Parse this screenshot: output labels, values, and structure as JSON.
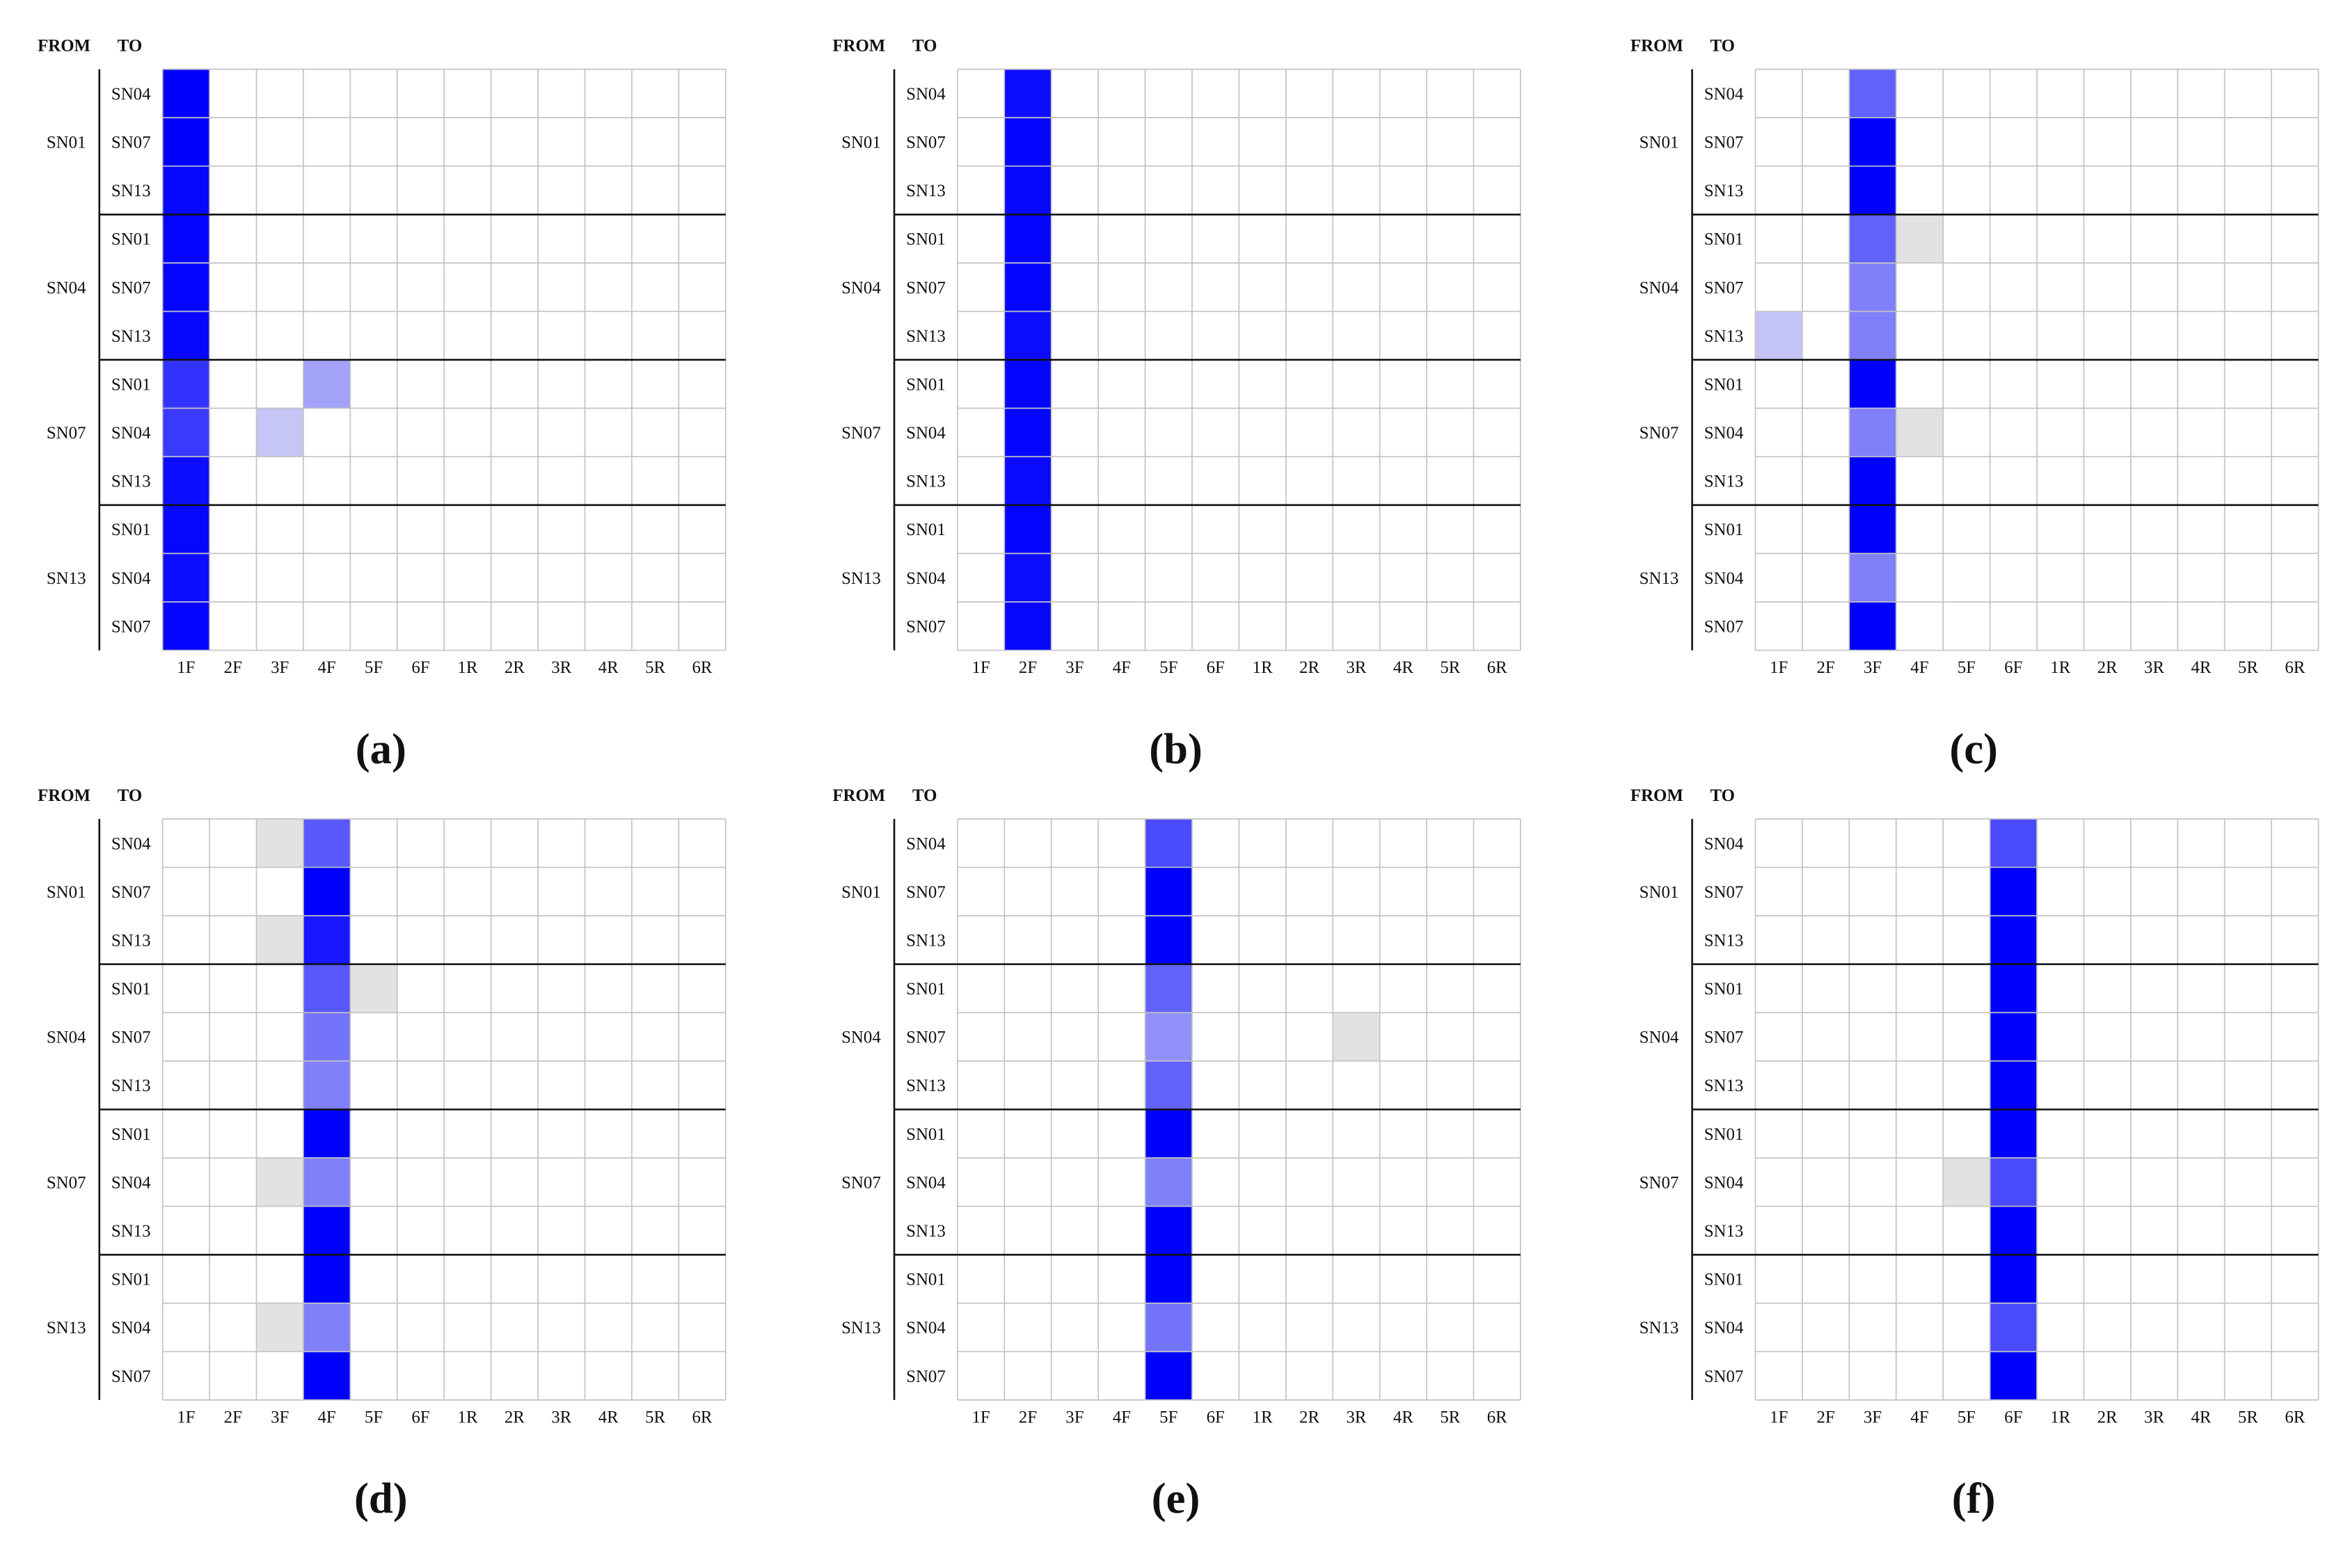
{
  "chart_data": [
    {
      "type": "heatmap",
      "panel_label": "(a)",
      "from_header": "FROM",
      "to_header": "TO",
      "from_groups": [
        "SN01",
        "SN04",
        "SN07",
        "SN13"
      ],
      "rows": [
        "SN04",
        "SN07",
        "SN13",
        "SN01",
        "SN07",
        "SN13",
        "SN01",
        "SN04",
        "SN13",
        "SN01",
        "SN04",
        "SN07"
      ],
      "columns": [
        "1F",
        "2F",
        "3F",
        "4F",
        "5F",
        "6F",
        "1R",
        "2R",
        "3R",
        "4R",
        "5R",
        "6R"
      ],
      "values": [
        [
          1.0,
          0,
          0,
          0,
          0,
          0,
          0,
          0,
          0,
          0,
          0,
          0
        ],
        [
          1.0,
          0,
          0,
          0,
          0,
          0,
          0,
          0,
          0,
          0,
          0,
          0
        ],
        [
          0.97,
          0,
          0,
          0,
          0,
          0,
          0,
          0,
          0,
          0,
          0,
          0
        ],
        [
          0.98,
          0,
          0,
          0,
          0,
          0,
          0,
          0,
          0,
          0,
          0,
          0
        ],
        [
          0.98,
          0,
          0,
          0,
          0,
          0,
          0,
          0,
          0,
          0,
          0,
          0
        ],
        [
          0.97,
          0,
          0,
          0,
          0,
          0,
          0,
          0,
          0,
          0,
          0,
          0
        ],
        [
          0.78,
          0,
          0,
          0.3,
          0,
          0,
          0,
          0,
          0,
          0,
          0,
          0
        ],
        [
          0.75,
          0,
          0.15,
          0,
          0,
          0,
          0,
          0,
          0,
          0,
          0,
          0
        ],
        [
          0.95,
          0,
          0,
          0,
          0,
          0,
          0,
          0,
          0,
          0,
          0,
          0
        ],
        [
          0.97,
          0,
          0,
          0,
          0,
          0,
          0,
          0,
          0,
          0,
          0,
          0
        ],
        [
          0.95,
          0,
          0,
          0,
          0,
          0,
          0,
          0,
          0,
          0,
          0,
          0
        ],
        [
          0.98,
          0,
          0,
          0,
          0,
          0,
          0,
          0,
          0,
          0,
          0,
          0
        ]
      ]
    },
    {
      "type": "heatmap",
      "panel_label": "(b)",
      "from_header": "FROM",
      "to_header": "TO",
      "from_groups": [
        "SN01",
        "SN04",
        "SN07",
        "SN13"
      ],
      "rows": [
        "SN04",
        "SN07",
        "SN13",
        "SN01",
        "SN07",
        "SN13",
        "SN01",
        "SN04",
        "SN13",
        "SN01",
        "SN04",
        "SN07"
      ],
      "columns": [
        "1F",
        "2F",
        "3F",
        "4F",
        "5F",
        "6F",
        "1R",
        "2R",
        "3R",
        "4R",
        "5R",
        "6R"
      ],
      "values": [
        [
          0,
          0.95,
          0,
          0,
          0,
          0,
          0,
          0,
          0,
          0,
          0,
          0
        ],
        [
          0,
          0.98,
          0,
          0,
          0,
          0,
          0,
          0,
          0,
          0,
          0,
          0
        ],
        [
          0,
          0.97,
          0,
          0,
          0,
          0,
          0,
          0,
          0,
          0,
          0,
          0
        ],
        [
          0,
          0.98,
          0,
          0,
          0,
          0,
          0,
          0,
          0,
          0,
          0,
          0
        ],
        [
          0,
          0.98,
          0,
          0,
          0,
          0,
          0,
          0,
          0,
          0,
          0,
          0
        ],
        [
          0,
          0.95,
          0,
          0,
          0,
          0,
          0,
          0,
          0,
          0,
          0,
          0
        ],
        [
          0,
          0.98,
          0,
          0,
          0,
          0,
          0,
          0,
          0,
          0,
          0,
          0
        ],
        [
          0,
          0.98,
          0,
          0,
          0,
          0,
          0,
          0,
          0,
          0,
          0,
          0
        ],
        [
          0,
          0.96,
          0,
          0,
          0,
          0,
          0,
          0,
          0,
          0,
          0,
          0
        ],
        [
          0,
          0.98,
          0,
          0,
          0,
          0,
          0,
          0,
          0,
          0,
          0,
          0
        ],
        [
          0,
          0.95,
          0,
          0,
          0,
          0,
          0,
          0,
          0,
          0,
          0,
          0
        ],
        [
          0,
          0.97,
          0,
          0,
          0,
          0,
          0,
          0,
          0,
          0,
          0,
          0
        ]
      ]
    },
    {
      "type": "heatmap",
      "panel_label": "(c)",
      "from_header": "FROM",
      "to_header": "TO",
      "from_groups": [
        "SN01",
        "SN04",
        "SN07",
        "SN13"
      ],
      "rows": [
        "SN04",
        "SN07",
        "SN13",
        "SN01",
        "SN07",
        "SN13",
        "SN01",
        "SN04",
        "SN13",
        "SN01",
        "SN04",
        "SN07"
      ],
      "columns": [
        "1F",
        "2F",
        "3F",
        "4F",
        "5F",
        "6F",
        "1R",
        "2R",
        "3R",
        "4R",
        "5R",
        "6R"
      ],
      "values": [
        [
          0,
          0,
          0.58,
          0,
          0,
          0,
          0,
          0,
          0,
          0,
          0,
          0
        ],
        [
          0,
          0,
          1.0,
          0,
          0,
          0,
          0,
          0,
          0,
          0,
          0,
          0
        ],
        [
          0,
          0,
          1.0,
          0,
          0,
          0,
          0,
          0,
          0,
          0,
          0,
          0
        ],
        [
          0,
          0,
          0.58,
          0.1,
          0,
          0,
          0,
          0,
          0,
          0,
          0,
          0
        ],
        [
          0,
          0,
          0.45,
          0,
          0,
          0,
          0,
          0,
          0,
          0,
          0,
          0
        ],
        [
          0.16,
          0,
          0.45,
          0,
          0,
          0,
          0,
          0,
          0,
          0,
          0,
          0
        ],
        [
          0,
          0,
          1.0,
          0,
          0,
          0,
          0,
          0,
          0,
          0,
          0,
          0
        ],
        [
          0,
          0,
          0.45,
          0.1,
          0,
          0,
          0,
          0,
          0,
          0,
          0,
          0
        ],
        [
          0,
          0,
          1.0,
          0,
          0,
          0,
          0,
          0,
          0,
          0,
          0,
          0
        ],
        [
          0,
          0,
          1.0,
          0,
          0,
          0,
          0,
          0,
          0,
          0,
          0,
          0
        ],
        [
          0,
          0,
          0.45,
          0,
          0,
          0,
          0,
          0,
          0,
          0,
          0,
          0
        ],
        [
          0,
          0,
          1.0,
          0,
          0,
          0,
          0,
          0,
          0,
          0,
          0,
          0
        ]
      ]
    },
    {
      "type": "heatmap",
      "panel_label": "(d)",
      "from_header": "FROM",
      "to_header": "TO",
      "from_groups": [
        "SN01",
        "SN04",
        "SN07",
        "SN13"
      ],
      "rows": [
        "SN04",
        "SN07",
        "SN13",
        "SN01",
        "SN07",
        "SN13",
        "SN01",
        "SN04",
        "SN13",
        "SN01",
        "SN04",
        "SN07"
      ],
      "columns": [
        "1F",
        "2F",
        "3F",
        "4F",
        "5F",
        "6F",
        "1R",
        "2R",
        "3R",
        "4R",
        "5R",
        "6R"
      ],
      "values": [
        [
          0,
          0,
          0.1,
          0.62,
          0,
          0,
          0,
          0,
          0,
          0,
          0,
          0
        ],
        [
          0,
          0,
          0,
          1.0,
          0,
          0,
          0,
          0,
          0,
          0,
          0,
          0
        ],
        [
          0,
          0,
          0.1,
          0.9,
          0,
          0,
          0,
          0,
          0,
          0,
          0,
          0
        ],
        [
          0,
          0,
          0,
          0.62,
          0.1,
          0,
          0,
          0,
          0,
          0,
          0,
          0
        ],
        [
          0,
          0,
          0,
          0.5,
          0,
          0,
          0,
          0,
          0,
          0,
          0,
          0
        ],
        [
          0,
          0,
          0,
          0.45,
          0,
          0,
          0,
          0,
          0,
          0,
          0,
          0
        ],
        [
          0,
          0,
          0,
          1.0,
          0,
          0,
          0,
          0,
          0,
          0,
          0,
          0
        ],
        [
          0,
          0,
          0.1,
          0.45,
          0,
          0,
          0,
          0,
          0,
          0,
          0,
          0
        ],
        [
          0,
          0,
          0,
          1.0,
          0,
          0,
          0,
          0,
          0,
          0,
          0,
          0
        ],
        [
          0,
          0,
          0,
          1.0,
          0,
          0,
          0,
          0,
          0,
          0,
          0,
          0
        ],
        [
          0,
          0,
          0.1,
          0.45,
          0,
          0,
          0,
          0,
          0,
          0,
          0,
          0
        ],
        [
          0,
          0,
          0,
          1.0,
          0,
          0,
          0,
          0,
          0,
          0,
          0,
          0
        ]
      ]
    },
    {
      "type": "heatmap",
      "panel_label": "(e)",
      "from_header": "FROM",
      "to_header": "TO",
      "from_groups": [
        "SN01",
        "SN04",
        "SN07",
        "SN13"
      ],
      "rows": [
        "SN04",
        "SN07",
        "SN13",
        "SN01",
        "SN07",
        "SN13",
        "SN01",
        "SN04",
        "SN13",
        "SN01",
        "SN04",
        "SN07"
      ],
      "columns": [
        "1F",
        "2F",
        "3F",
        "4F",
        "5F",
        "6F",
        "1R",
        "2R",
        "3R",
        "4R",
        "5R",
        "6R"
      ],
      "values": [
        [
          0,
          0,
          0,
          0,
          0.68,
          0,
          0,
          0,
          0,
          0,
          0,
          0
        ],
        [
          0,
          0,
          0,
          0,
          1.0,
          0,
          0,
          0,
          0,
          0,
          0,
          0
        ],
        [
          0,
          0,
          0,
          0,
          1.0,
          0,
          0,
          0,
          0,
          0,
          0,
          0
        ],
        [
          0,
          0,
          0,
          0,
          0.58,
          0,
          0,
          0,
          0,
          0,
          0,
          0
        ],
        [
          0,
          0,
          0,
          0,
          0.38,
          0,
          0,
          0,
          0.1,
          0,
          0,
          0
        ],
        [
          0,
          0,
          0,
          0,
          0.58,
          0,
          0,
          0,
          0,
          0,
          0,
          0
        ],
        [
          0,
          0,
          0,
          0,
          1.0,
          0,
          0,
          0,
          0,
          0,
          0,
          0
        ],
        [
          0,
          0,
          0,
          0,
          0.45,
          0,
          0,
          0,
          0,
          0,
          0,
          0
        ],
        [
          0,
          0,
          0,
          0,
          1.0,
          0,
          0,
          0,
          0,
          0,
          0,
          0
        ],
        [
          0,
          0,
          0,
          0,
          1.0,
          0,
          0,
          0,
          0,
          0,
          0,
          0
        ],
        [
          0,
          0,
          0,
          0,
          0.5,
          0,
          0,
          0,
          0,
          0,
          0,
          0
        ],
        [
          0,
          0,
          0,
          0,
          1.0,
          0,
          0,
          0,
          0,
          0,
          0,
          0
        ]
      ]
    },
    {
      "type": "heatmap",
      "panel_label": "(f)",
      "from_header": "FROM",
      "to_header": "TO",
      "from_groups": [
        "SN01",
        "SN04",
        "SN07",
        "SN13"
      ],
      "rows": [
        "SN04",
        "SN07",
        "SN13",
        "SN01",
        "SN07",
        "SN13",
        "SN01",
        "SN04",
        "SN13",
        "SN01",
        "SN04",
        "SN07"
      ],
      "columns": [
        "1F",
        "2F",
        "3F",
        "4F",
        "5F",
        "6F",
        "1R",
        "2R",
        "3R",
        "4R",
        "5R",
        "6R"
      ],
      "values": [
        [
          0,
          0,
          0,
          0,
          0,
          0.68,
          0,
          0,
          0,
          0,
          0,
          0
        ],
        [
          0,
          0,
          0,
          0,
          0,
          1.0,
          0,
          0,
          0,
          0,
          0,
          0
        ],
        [
          0,
          0,
          0,
          0,
          0,
          1.0,
          0,
          0,
          0,
          0,
          0,
          0
        ],
        [
          0,
          0,
          0,
          0,
          0,
          1.0,
          0,
          0,
          0,
          0,
          0,
          0
        ],
        [
          0,
          0,
          0,
          0,
          0,
          1.0,
          0,
          0,
          0,
          0,
          0,
          0
        ],
        [
          0,
          0,
          0,
          0,
          0,
          1.0,
          0,
          0,
          0,
          0,
          0,
          0
        ],
        [
          0,
          0,
          0,
          0,
          0,
          1.0,
          0,
          0,
          0,
          0,
          0,
          0
        ],
        [
          0,
          0,
          0,
          0,
          0.1,
          0.68,
          0,
          0,
          0,
          0,
          0,
          0
        ],
        [
          0,
          0,
          0,
          0,
          0,
          1.0,
          0,
          0,
          0,
          0,
          0,
          0
        ],
        [
          0,
          0,
          0,
          0,
          0,
          1.0,
          0,
          0,
          0,
          0,
          0,
          0
        ],
        [
          0,
          0,
          0,
          0,
          0,
          0.68,
          0,
          0,
          0,
          0,
          0,
          0
        ],
        [
          0,
          0,
          0,
          0,
          0,
          1.0,
          0,
          0,
          0,
          0,
          0,
          0
        ]
      ]
    }
  ],
  "colors": {
    "strong": "#0000ff",
    "faint": "#e2e2e2",
    "grid": "#c4c4c4",
    "separator": "#111111",
    "background": "#ffffff"
  }
}
